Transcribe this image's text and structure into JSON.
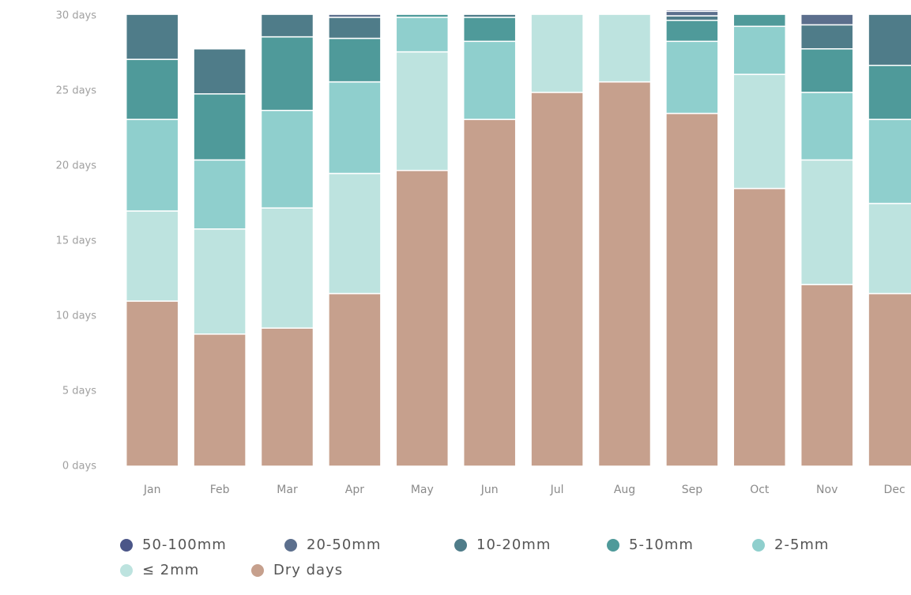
{
  "chart_data": {
    "type": "stacked-bar",
    "categories": [
      "Jan",
      "Feb",
      "Mar",
      "Apr",
      "May",
      "Jun",
      "Jul",
      "Aug",
      "Sep",
      "Oct",
      "Nov",
      "Dec"
    ],
    "series": [
      {
        "name": "50-100mm",
        "color": "#4b5688",
        "values": [
          0,
          0,
          0,
          0,
          0,
          0,
          0,
          0,
          0.1,
          0,
          0,
          0
        ]
      },
      {
        "name": "20-50mm",
        "color": "#5c6f8d",
        "values": [
          0,
          0,
          0,
          0.2,
          0,
          0,
          0,
          0,
          0.3,
          0,
          0.7,
          0
        ]
      },
      {
        "name": "10-20mm",
        "color": "#4f7c89",
        "values": [
          3.0,
          3.0,
          1.5,
          1.4,
          0,
          0.2,
          0,
          0,
          0.3,
          0,
          1.6,
          3.4
        ]
      },
      {
        "name": "5-10mm",
        "color": "#4f9a9a",
        "values": [
          4.0,
          4.4,
          4.9,
          2.9,
          0.2,
          1.6,
          0,
          0,
          1.4,
          0.8,
          2.9,
          3.6
        ]
      },
      {
        "name": "2-5mm",
        "color": "#8fcfcd",
        "values": [
          6.1,
          4.6,
          6.5,
          6.1,
          2.3,
          5.2,
          0,
          0,
          4.8,
          3.2,
          4.5,
          5.6
        ]
      },
      {
        "name": "≤ 2mm",
        "color": "#bde3df",
        "values": [
          6.0,
          7.0,
          8.0,
          8.0,
          7.9,
          0,
          5.2,
          4.5,
          0,
          7.6,
          8.3,
          6.0
        ]
      },
      {
        "name": "Dry days",
        "color": "#c6a08d",
        "values": [
          11.0,
          8.8,
          9.2,
          11.5,
          19.7,
          23.1,
          24.9,
          25.6,
          23.5,
          18.5,
          12.1,
          11.5
        ]
      }
    ],
    "ylim": [
      0,
      30
    ],
    "yticks": [
      {
        "value": 0,
        "label": "0 days"
      },
      {
        "value": 5,
        "label": "5 days"
      },
      {
        "value": 10,
        "label": "10 days"
      },
      {
        "value": 15,
        "label": "15 days"
      },
      {
        "value": 20,
        "label": "20 days"
      },
      {
        "value": 25,
        "label": "25 days"
      },
      {
        "value": 30,
        "label": "30 days"
      }
    ],
    "legend": "bottom-left"
  }
}
